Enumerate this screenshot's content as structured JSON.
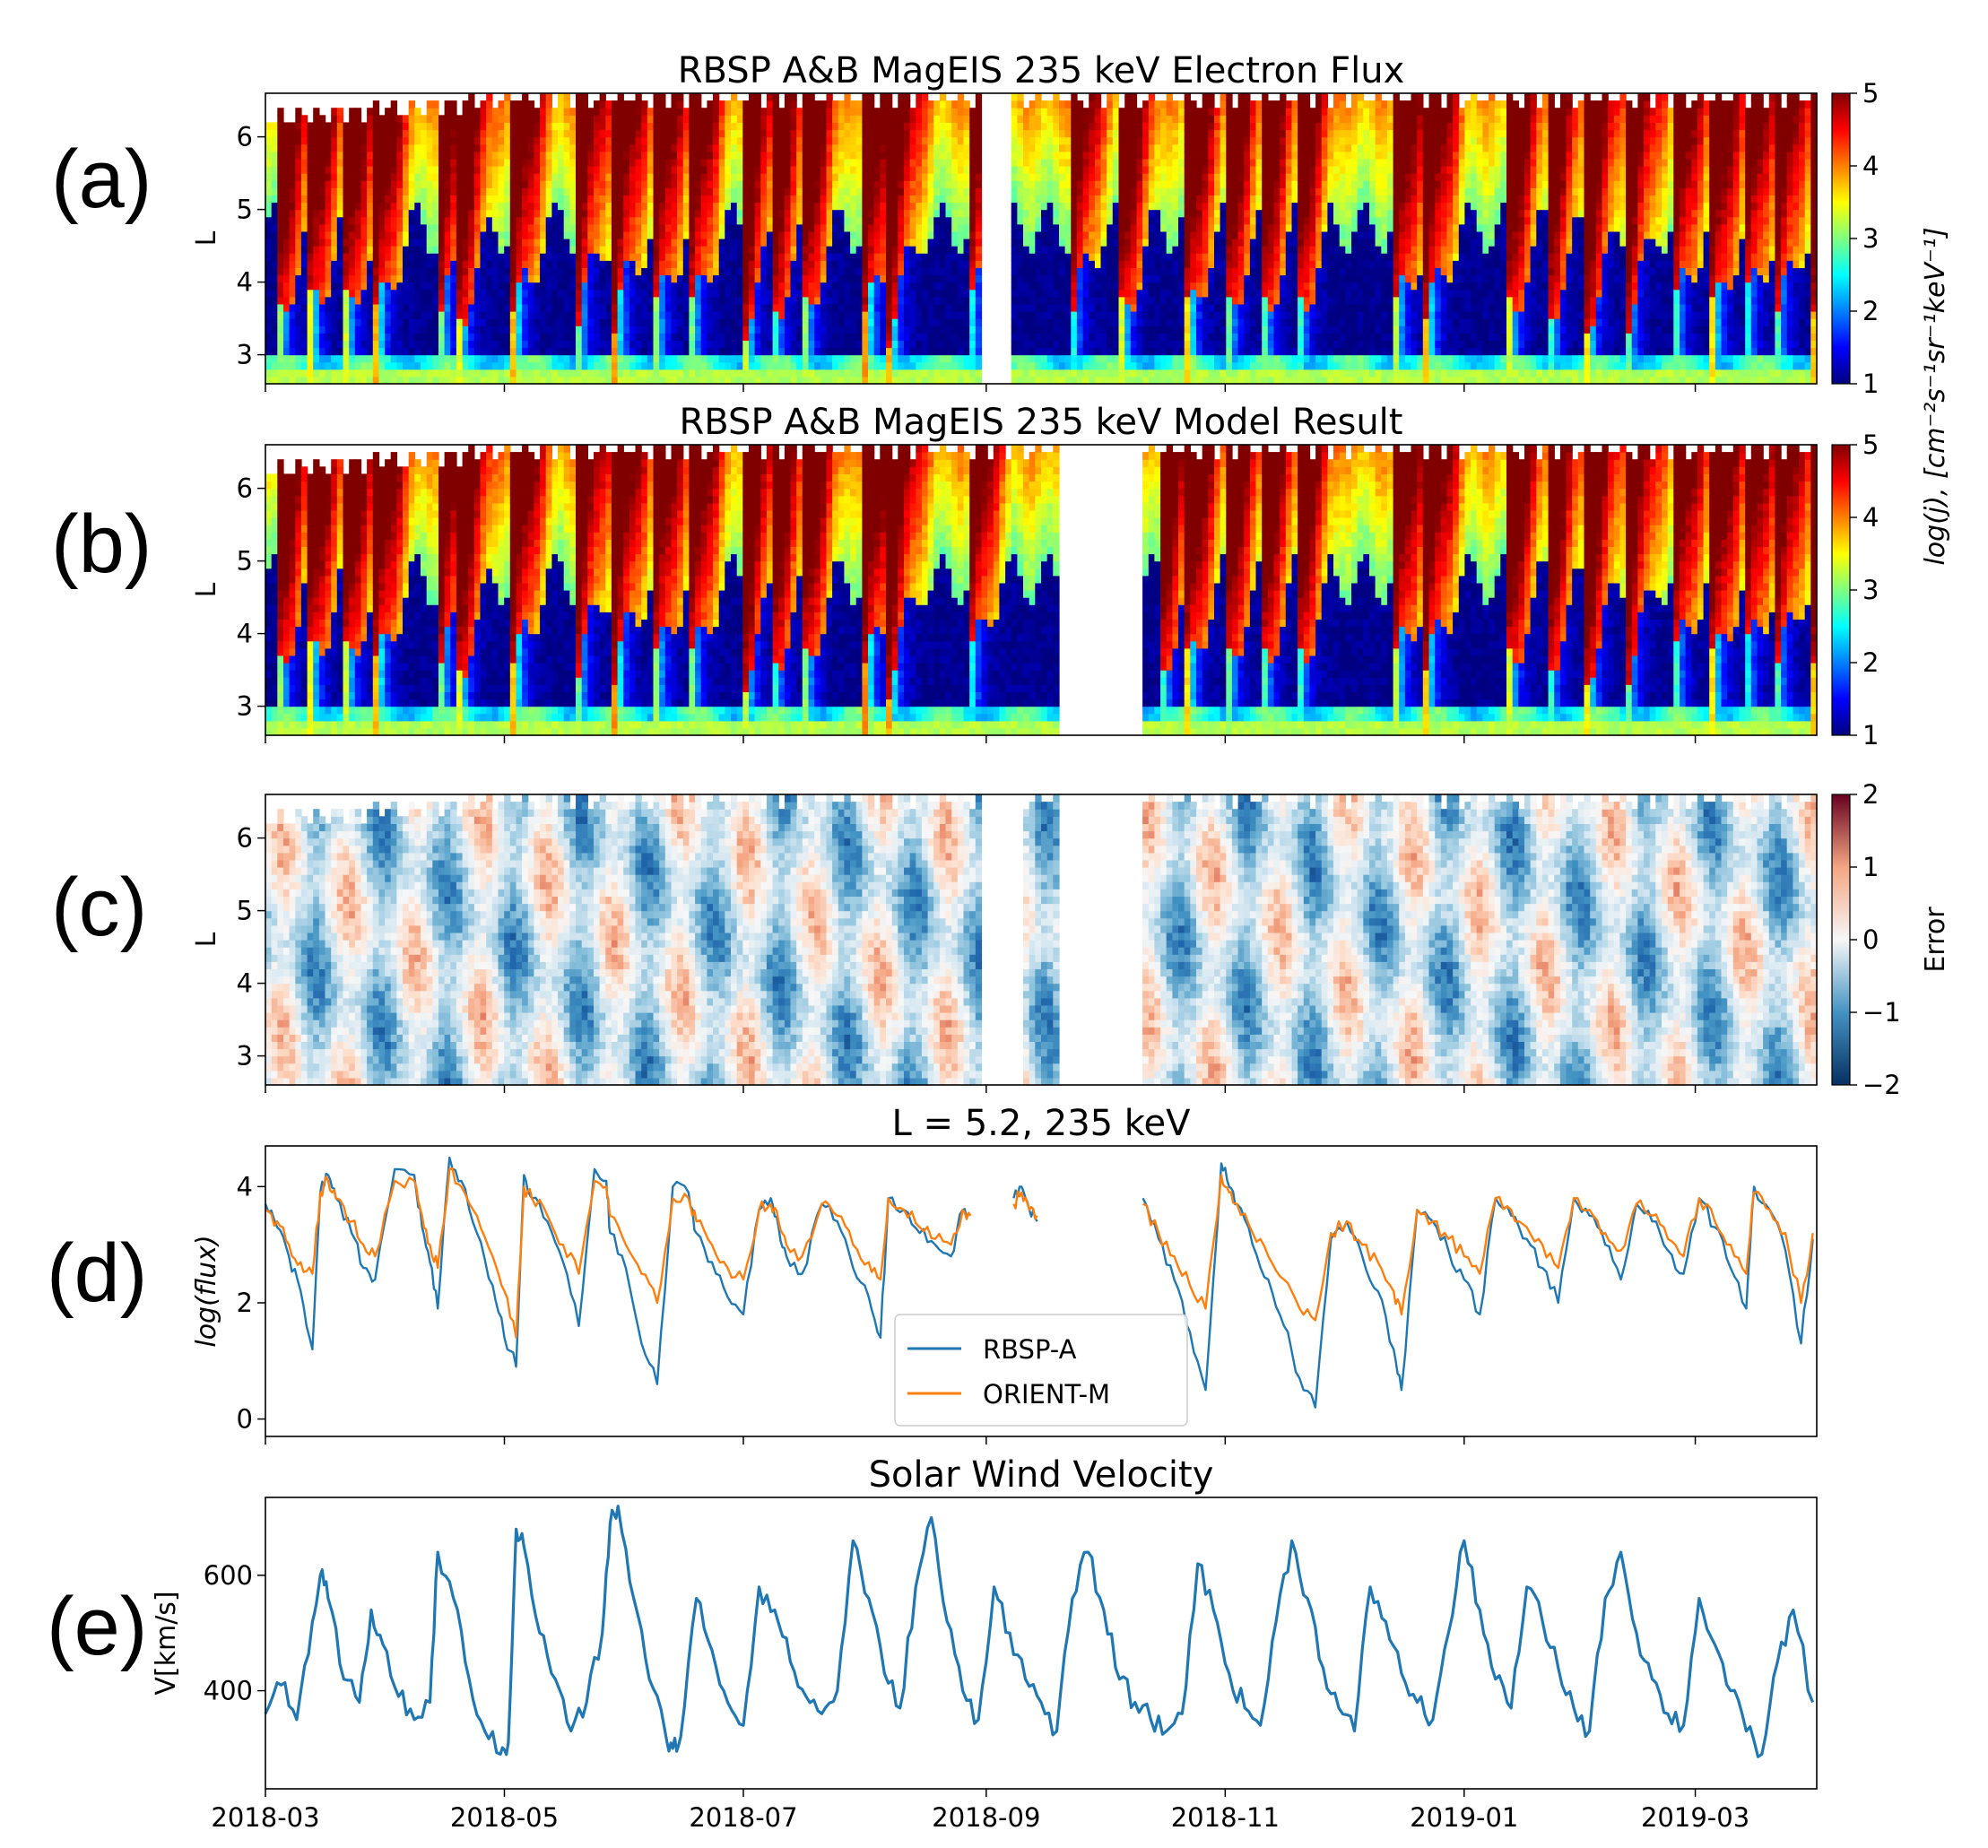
{
  "colors": {
    "rbsp": "#1f77b4",
    "orient": "#ff7f0e",
    "missing": "#ffffff",
    "axis": "#000000"
  },
  "panel_labels": [
    "(a)",
    "(b)",
    "(c)",
    "(d)",
    "(e)"
  ],
  "x_axis": {
    "ticks": [
      "2018-03",
      "2018-05",
      "2018-07",
      "2018-09",
      "2018-11",
      "2019-01",
      "2019-03"
    ],
    "range": [
      "2018-03-01",
      "2019-04-01"
    ]
  },
  "chart_data": [
    {
      "id": "a",
      "type": "heatmap",
      "title": "RBSP A&B MagEIS 235 keV Electron Flux",
      "ylabel": "L",
      "yticks": [
        "3",
        "4",
        "5",
        "6"
      ],
      "ylim": [
        2.6,
        6.6
      ],
      "colormap": "jet",
      "clim": [
        1,
        5
      ],
      "cbar_ticks": [
        "1",
        "2",
        "3",
        "4",
        "5"
      ],
      "data_gap_days": [
        [
          183,
          191
        ]
      ],
      "injection_days": [
        3,
        11,
        20,
        28,
        44,
        49,
        63,
        79,
        89,
        99,
        108,
        122,
        129,
        137,
        153,
        159,
        179,
        205,
        218,
        235,
        245,
        254,
        263,
        288,
        296,
        317,
        327,
        337,
        347,
        359,
        369,
        377,
        385,
        395
      ]
    },
    {
      "id": "b",
      "type": "heatmap",
      "title": "RBSP A&B MagEIS 235 keV Model Result",
      "ylabel": "L",
      "yticks": [
        "3",
        "4",
        "5",
        "6"
      ],
      "ylim": [
        2.6,
        6.6
      ],
      "colormap": "jet",
      "clim": [
        1,
        5
      ],
      "cbar_ticks": [
        "1",
        "2",
        "3",
        "4",
        "5"
      ],
      "cbar_label": "log(j), [cm⁻²s⁻¹sr⁻¹keV⁻¹]",
      "data_gap_days": [
        [
          202,
          224
        ]
      ],
      "injection_days": [
        3,
        11,
        20,
        28,
        44,
        49,
        63,
        79,
        89,
        99,
        108,
        122,
        129,
        137,
        153,
        159,
        179,
        228,
        235,
        245,
        254,
        263,
        288,
        296,
        317,
        327,
        337,
        347,
        359,
        369,
        377,
        385,
        395
      ]
    },
    {
      "id": "c",
      "type": "heatmap",
      "title": "",
      "ylabel": "L",
      "yticks": [
        "3",
        "4",
        "5",
        "6"
      ],
      "ylim": [
        2.6,
        6.6
      ],
      "colormap": "RdBu_r",
      "clim": [
        -2,
        2
      ],
      "cbar_ticks": [
        "−2",
        "−1",
        "0",
        "1",
        "2"
      ],
      "cbar_label": "Error",
      "data_gap_days": [
        [
          183,
          193
        ],
        [
          202,
          224
        ]
      ]
    },
    {
      "id": "d",
      "type": "line",
      "title": "L = 5.2, 235 keV",
      "ylabel": "log(flux)",
      "yticks": [
        "0",
        "2",
        "4"
      ],
      "ylim": [
        -0.3,
        4.7
      ],
      "legend": {
        "position": "lower-center",
        "entries": [
          "RBSP-A",
          "ORIENT-M"
        ]
      },
      "gaps_days": [
        [
          180,
          191
        ],
        [
          197,
          224
        ]
      ],
      "series": [
        {
          "name": "RBSP-A",
          "color": "#1f77b4",
          "x": [
            0,
            3,
            6,
            9,
            12,
            14,
            16,
            18,
            22,
            25,
            28,
            33,
            38,
            40,
            42,
            44,
            47,
            50,
            54,
            58,
            61,
            64,
            66,
            68,
            72,
            76,
            80,
            84,
            87,
            88,
            92,
            96,
            100,
            104,
            108,
            110,
            114,
            118,
            122,
            126,
            129,
            131,
            133,
            137,
            142,
            146,
            150,
            154,
            157,
            159,
            163,
            167,
            171,
            175,
            178,
            180,
            191,
            193,
            195,
            197,
            224,
            228,
            232,
            236,
            240,
            244,
            246,
            248,
            252,
            256,
            260,
            264,
            268,
            272,
            276,
            280,
            284,
            288,
            290,
            294,
            298,
            302,
            306,
            310,
            314,
            318,
            322,
            326,
            330,
            334,
            338,
            342,
            346,
            350,
            354,
            358,
            362,
            366,
            370,
            374,
            378,
            380,
            384,
            388,
            392,
            395
          ],
          "values": [
            3.7,
            3.3,
            2.8,
            2.2,
            1.2,
            3.9,
            4.2,
            3.8,
            3.2,
            2.6,
            2.4,
            4.3,
            4.2,
            3.3,
            2.7,
            1.9,
            4.5,
            4.1,
            3.2,
            2.3,
            1.4,
            0.9,
            4.2,
            3.8,
            3.4,
            2.7,
            1.6,
            4.3,
            4.1,
            3.2,
            2.6,
            1.3,
            0.6,
            4.0,
            3.9,
            3.2,
            2.7,
            2.1,
            1.8,
            3.6,
            3.8,
            3.3,
            2.8,
            2.5,
            3.7,
            3.4,
            2.6,
            2.1,
            1.4,
            3.8,
            3.6,
            3.2,
            3.0,
            2.8,
            3.6,
            3.5,
            3.8,
            4.0,
            3.6,
            3.4,
            3.8,
            3.1,
            2.4,
            1.5,
            0.5,
            4.4,
            4.0,
            3.7,
            3.0,
            2.4,
            1.6,
            0.7,
            0.2,
            3.1,
            3.4,
            2.8,
            2.2,
            1.2,
            0.5,
            3.6,
            3.4,
            2.9,
            2.4,
            1.8,
            3.8,
            3.5,
            3.1,
            2.6,
            2.0,
            3.8,
            3.5,
            3.0,
            2.4,
            3.7,
            3.4,
            2.9,
            2.5,
            3.8,
            3.3,
            2.6,
            1.9,
            4.0,
            3.6,
            2.9,
            1.3,
            3.1
          ]
        },
        {
          "name": "ORIENT-M",
          "color": "#ff7f0e",
          "x": [
            0,
            3,
            6,
            9,
            12,
            14,
            16,
            18,
            22,
            25,
            28,
            33,
            38,
            40,
            42,
            44,
            47,
            50,
            54,
            58,
            61,
            64,
            66,
            68,
            72,
            76,
            80,
            84,
            87,
            88,
            92,
            96,
            100,
            104,
            108,
            110,
            114,
            118,
            122,
            126,
            129,
            131,
            133,
            137,
            142,
            146,
            150,
            154,
            157,
            159,
            163,
            167,
            171,
            175,
            178,
            180,
            191,
            193,
            195,
            197,
            224,
            228,
            232,
            236,
            240,
            244,
            246,
            248,
            252,
            256,
            260,
            264,
            268,
            272,
            276,
            280,
            284,
            288,
            290,
            294,
            298,
            302,
            306,
            310,
            314,
            318,
            322,
            326,
            330,
            334,
            338,
            342,
            346,
            350,
            354,
            358,
            362,
            366,
            370,
            374,
            378,
            380,
            384,
            388,
            392,
            395
          ],
          "values": [
            3.6,
            3.4,
            3.0,
            2.7,
            2.5,
            3.9,
            4.1,
            3.8,
            3.4,
            3.0,
            2.8,
            4.1,
            4.1,
            3.5,
            3.0,
            2.6,
            4.3,
            4.0,
            3.5,
            2.8,
            2.2,
            1.4,
            4.0,
            3.8,
            3.5,
            3.0,
            2.5,
            4.1,
            4.0,
            3.5,
            3.0,
            2.5,
            2.0,
            3.8,
            3.8,
            3.4,
            3.0,
            2.6,
            2.4,
            3.6,
            3.7,
            3.4,
            3.0,
            2.8,
            3.7,
            3.5,
            3.0,
            2.7,
            2.4,
            3.8,
            3.6,
            3.3,
            3.1,
            3.0,
            3.6,
            3.5,
            3.7,
            3.9,
            3.6,
            3.5,
            3.7,
            3.2,
            2.8,
            2.3,
            1.9,
            4.2,
            3.9,
            3.7,
            3.2,
            2.8,
            2.4,
            1.9,
            1.7,
            3.2,
            3.4,
            3.0,
            2.7,
            2.2,
            1.8,
            3.6,
            3.4,
            3.1,
            2.8,
            2.5,
            3.8,
            3.6,
            3.3,
            3.0,
            2.6,
            3.8,
            3.6,
            3.2,
            2.9,
            3.7,
            3.5,
            3.1,
            2.8,
            3.8,
            3.4,
            3.0,
            2.5,
            3.9,
            3.6,
            3.2,
            2.0,
            3.2
          ]
        }
      ]
    },
    {
      "id": "e",
      "type": "line",
      "title": "Solar Wind Velocity",
      "ylabel": "V[km/s]",
      "yticks": [
        "400",
        "600"
      ],
      "ylim": [
        230,
        735
      ],
      "series": [
        {
          "name": "Solar Wind Velocity",
          "color": "#1f77b4",
          "x": [
            0,
            4,
            8,
            12,
            14,
            16,
            20,
            24,
            27,
            30,
            34,
            38,
            42,
            44,
            48,
            52,
            56,
            60,
            62,
            64,
            66,
            70,
            74,
            78,
            82,
            86,
            88,
            90,
            94,
            98,
            102,
            104,
            106,
            110,
            114,
            118,
            122,
            126,
            130,
            134,
            138,
            142,
            146,
            150,
            154,
            158,
            162,
            166,
            170,
            174,
            178,
            182,
            186,
            190,
            194,
            198,
            202,
            206,
            210,
            214,
            218,
            222,
            226,
            230,
            234,
            238,
            242,
            246,
            250,
            254,
            258,
            262,
            266,
            270,
            274,
            278,
            282,
            286,
            290,
            294,
            298,
            302,
            306,
            310,
            314,
            318,
            322,
            326,
            330,
            334,
            338,
            342,
            346,
            350,
            354,
            358,
            362,
            366,
            370,
            374,
            378,
            382,
            386,
            390,
            395
          ],
          "values": [
            360,
            410,
            350,
            520,
            600,
            560,
            420,
            380,
            540,
            480,
            390,
            350,
            380,
            640,
            560,
            420,
            330,
            290,
            310,
            680,
            650,
            500,
            420,
            330,
            380,
            500,
            690,
            720,
            560,
            420,
            330,
            300,
            320,
            560,
            470,
            380,
            340,
            580,
            540,
            450,
            390,
            360,
            400,
            660,
            560,
            430,
            370,
            580,
            700,
            520,
            400,
            350,
            580,
            500,
            420,
            380,
            330,
            560,
            640,
            540,
            420,
            380,
            350,
            330,
            360,
            620,
            540,
            430,
            370,
            340,
            520,
            660,
            560,
            440,
            370,
            330,
            580,
            520,
            430,
            380,
            350,
            500,
            660,
            540,
            420,
            370,
            580,
            520,
            440,
            370,
            330,
            560,
            640,
            500,
            420,
            360,
            340,
            560,
            480,
            400,
            330,
            290,
            450,
            540,
            380
          ]
        }
      ]
    }
  ]
}
